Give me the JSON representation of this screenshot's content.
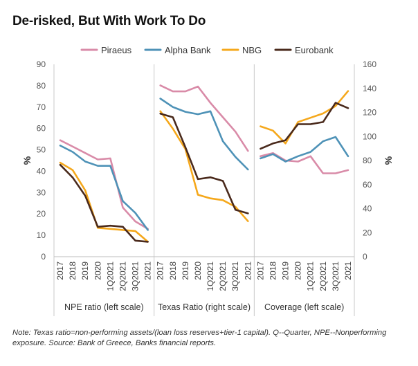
{
  "chart_data": {
    "type": "line",
    "title": "De-risked, But With Work To Do",
    "categories": [
      "2017",
      "2018",
      "2019",
      "2020",
      "1Q2021",
      "2Q2021",
      "3Q2021",
      "2021"
    ],
    "groups": [
      {
        "label": "NPE ratio (left scale)",
        "axis": "left",
        "series": [
          {
            "name": "Piraeus",
            "values": [
              54.5,
              51.5,
              48.5,
              45.5,
              46,
              23,
              16.5,
              13
            ]
          },
          {
            "name": "Alpha Bank",
            "values": [
              52,
              49,
              44.5,
              42.5,
              42.5,
              26,
              20.5,
              12.5
            ]
          },
          {
            "name": "NBG",
            "values": [
              44,
              40.5,
              31,
              13.5,
              13,
              12.5,
              12,
              7
            ]
          },
          {
            "name": "Eurobank",
            "values": [
              43,
              37,
              28.5,
              14,
              14.5,
              14,
              7.5,
              7
            ]
          }
        ]
      },
      {
        "label": "Texas Ratio (right scale)",
        "axis": "right",
        "series": [
          {
            "name": "Piraeus",
            "values": [
              142.5,
              137.5,
              137.5,
              141.5,
              128,
              116,
              104,
              88
            ]
          },
          {
            "name": "Alpha Bank",
            "values": [
              131.5,
              124.5,
              120.5,
              118.5,
              121,
              96,
              83,
              72.5
            ]
          },
          {
            "name": "NBG",
            "values": [
              121,
              106.5,
              89.5,
              51.5,
              48.5,
              47,
              41.5,
              29.5
            ]
          },
          {
            "name": "Eurobank",
            "values": [
              119,
              116,
              91,
              64.5,
              66,
              63,
              39,
              36
            ]
          }
        ]
      },
      {
        "label": "Coverage (left scale)",
        "axis": "left",
        "series": [
          {
            "name": "Piraeus",
            "values": [
              47,
              48.5,
              45,
              44.5,
              47,
              39,
              39,
              40.5
            ]
          },
          {
            "name": "Alpha Bank",
            "values": [
              46,
              48,
              44.5,
              47,
              49,
              54,
              56,
              47
            ]
          },
          {
            "name": "NBG",
            "values": [
              61,
              59,
              53,
              63,
              65,
              67,
              70.5,
              77.5
            ]
          },
          {
            "name": "Eurobank",
            "values": [
              50.5,
              53,
              54.5,
              62,
              62,
              63,
              72,
              69.5
            ]
          }
        ]
      }
    ],
    "series_colors": {
      "Piraeus": "#d98ba8",
      "Alpha Bank": "#4e92b7",
      "NBG": "#f5a81c",
      "Eurobank": "#4a2a1c"
    },
    "left_axis": {
      "label": "%",
      "min": 0,
      "max": 90,
      "ticks": [
        "0",
        "10",
        "20",
        "30",
        "40",
        "50",
        "60",
        "70",
        "80",
        "90"
      ]
    },
    "right_axis": {
      "label": "%",
      "min": 0,
      "max": 160,
      "ticks": [
        "0",
        "20",
        "40",
        "60",
        "80",
        "100",
        "120",
        "140",
        "160"
      ]
    },
    "legend": {
      "position": "top",
      "entries": [
        "Piraeus",
        "Alpha Bank",
        "NBG",
        "Eurobank"
      ]
    }
  },
  "note_text": "Note: Texas ratio=non-performing assets/(loan loss reserves+tier-1 capital). Q--Quarter, NPE--Nonperforming exposure. Source: Bank of Greece, Banks financial reports."
}
